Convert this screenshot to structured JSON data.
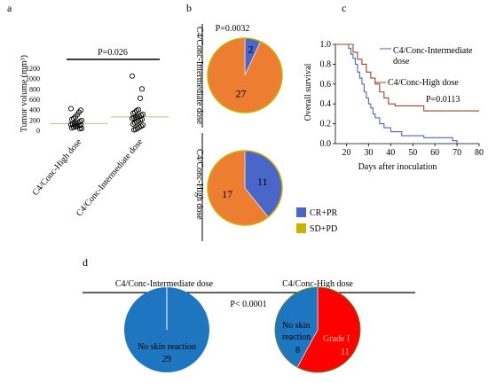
{
  "figure": {
    "panels": [
      "(a)",
      "(b)",
      "(c)",
      "(d)"
    ]
  },
  "colors": {
    "cr_pr": "#4a66c8",
    "sd_pd": "#c8b400",
    "pie_orange": "#ed7d31",
    "km_intermediate": "#4a66c8",
    "km_high": "#a0442c",
    "skin_blue": "#1f76c0",
    "grade1_red": "#ff0000",
    "mean_line": "#c8c49a"
  },
  "chart_data": [
    {
      "id": "a",
      "type": "scatter",
      "title": "",
      "ylabel": "Tumor volume (mm³)",
      "ylim": [
        0,
        1200
      ],
      "yticks": [
        0,
        200,
        400,
        600,
        800,
        1000,
        1200
      ],
      "categories": [
        "C4/Conc-High dose",
        "C4/Conc-Intermediate dose"
      ],
      "pvalue_label": "P=0.026",
      "series": [
        {
          "values": [
            420,
            390,
            350,
            300,
            260,
            230,
            210,
            190,
            170,
            150,
            140,
            130,
            120,
            110,
            100,
            90,
            80,
            70,
            60,
            50,
            40,
            30
          ],
          "mean": 130
        },
        {
          "values": [
            1050,
            800,
            620,
            400,
            380,
            350,
            330,
            310,
            290,
            270,
            260,
            250,
            240,
            230,
            210,
            200,
            180,
            160,
            140,
            120,
            100,
            80,
            60,
            40,
            20,
            10
          ],
          "mean": 260
        }
      ]
    },
    {
      "id": "b",
      "type": "pie",
      "pvalue_label": "P=0.0032",
      "pies": [
        {
          "title": "C4/Conc-Intermediate dose",
          "slices": [
            {
              "label": "CR+PR",
              "value": 2
            },
            {
              "label": "SD+PD",
              "value": 27
            }
          ]
        },
        {
          "title": "C4/Conc-High dose",
          "slices": [
            {
              "label": "CR+PR",
              "value": 11
            },
            {
              "label": "SD+PD",
              "value": 17
            }
          ]
        }
      ],
      "legend": [
        "CR+PR",
        "SD+PD"
      ]
    },
    {
      "id": "c",
      "type": "line",
      "xlabel": "Days after inoculation",
      "ylabel": "Overall survival",
      "xlim": [
        15,
        80
      ],
      "xticks": [
        20,
        30,
        40,
        50,
        60,
        70,
        80
      ],
      "ylim": [
        0,
        1
      ],
      "yticks": [
        0.0,
        0.2,
        0.4,
        0.6,
        0.8,
        1.0
      ],
      "pvalue_label": "P=0.0113",
      "series": [
        {
          "name": "C4/Conc-Intermediate dose",
          "steps": [
            [
              15,
              1.0
            ],
            [
              20,
              1.0
            ],
            [
              21,
              0.96
            ],
            [
              22,
              0.9
            ],
            [
              23,
              0.86
            ],
            [
              24,
              0.8
            ],
            [
              25,
              0.72
            ],
            [
              26,
              0.66
            ],
            [
              27,
              0.6
            ],
            [
              28,
              0.52
            ],
            [
              29,
              0.46
            ],
            [
              30,
              0.4
            ],
            [
              31,
              0.36
            ],
            [
              32,
              0.3
            ],
            [
              33,
              0.26
            ],
            [
              35,
              0.2
            ],
            [
              37,
              0.16
            ],
            [
              40,
              0.12
            ],
            [
              45,
              0.08
            ],
            [
              55,
              0.06
            ],
            [
              68,
              0.03
            ],
            [
              70,
              0.0
            ]
          ]
        },
        {
          "name": "C4/Conc-High dose",
          "steps": [
            [
              15,
              1.0
            ],
            [
              22,
              1.0
            ],
            [
              23,
              0.92
            ],
            [
              25,
              0.85
            ],
            [
              27,
              0.8
            ],
            [
              29,
              0.72
            ],
            [
              31,
              0.66
            ],
            [
              33,
              0.6
            ],
            [
              35,
              0.52
            ],
            [
              37,
              0.46
            ],
            [
              39,
              0.4
            ],
            [
              42,
              0.38
            ],
            [
              55,
              0.33
            ],
            [
              80,
              0.33
            ]
          ]
        }
      ]
    },
    {
      "id": "d",
      "type": "pie",
      "pvalue_label": "P< 0.0001",
      "pies": [
        {
          "title": "C4/Conc-Intermediate dose",
          "slices": [
            {
              "label": "No skin reaction",
              "value": 29
            }
          ]
        },
        {
          "title": "C4/Conc-High dose",
          "slices": [
            {
              "label": "No skin reaction",
              "value": 8
            },
            {
              "label": "Grade I",
              "value": 11
            }
          ]
        }
      ]
    }
  ]
}
